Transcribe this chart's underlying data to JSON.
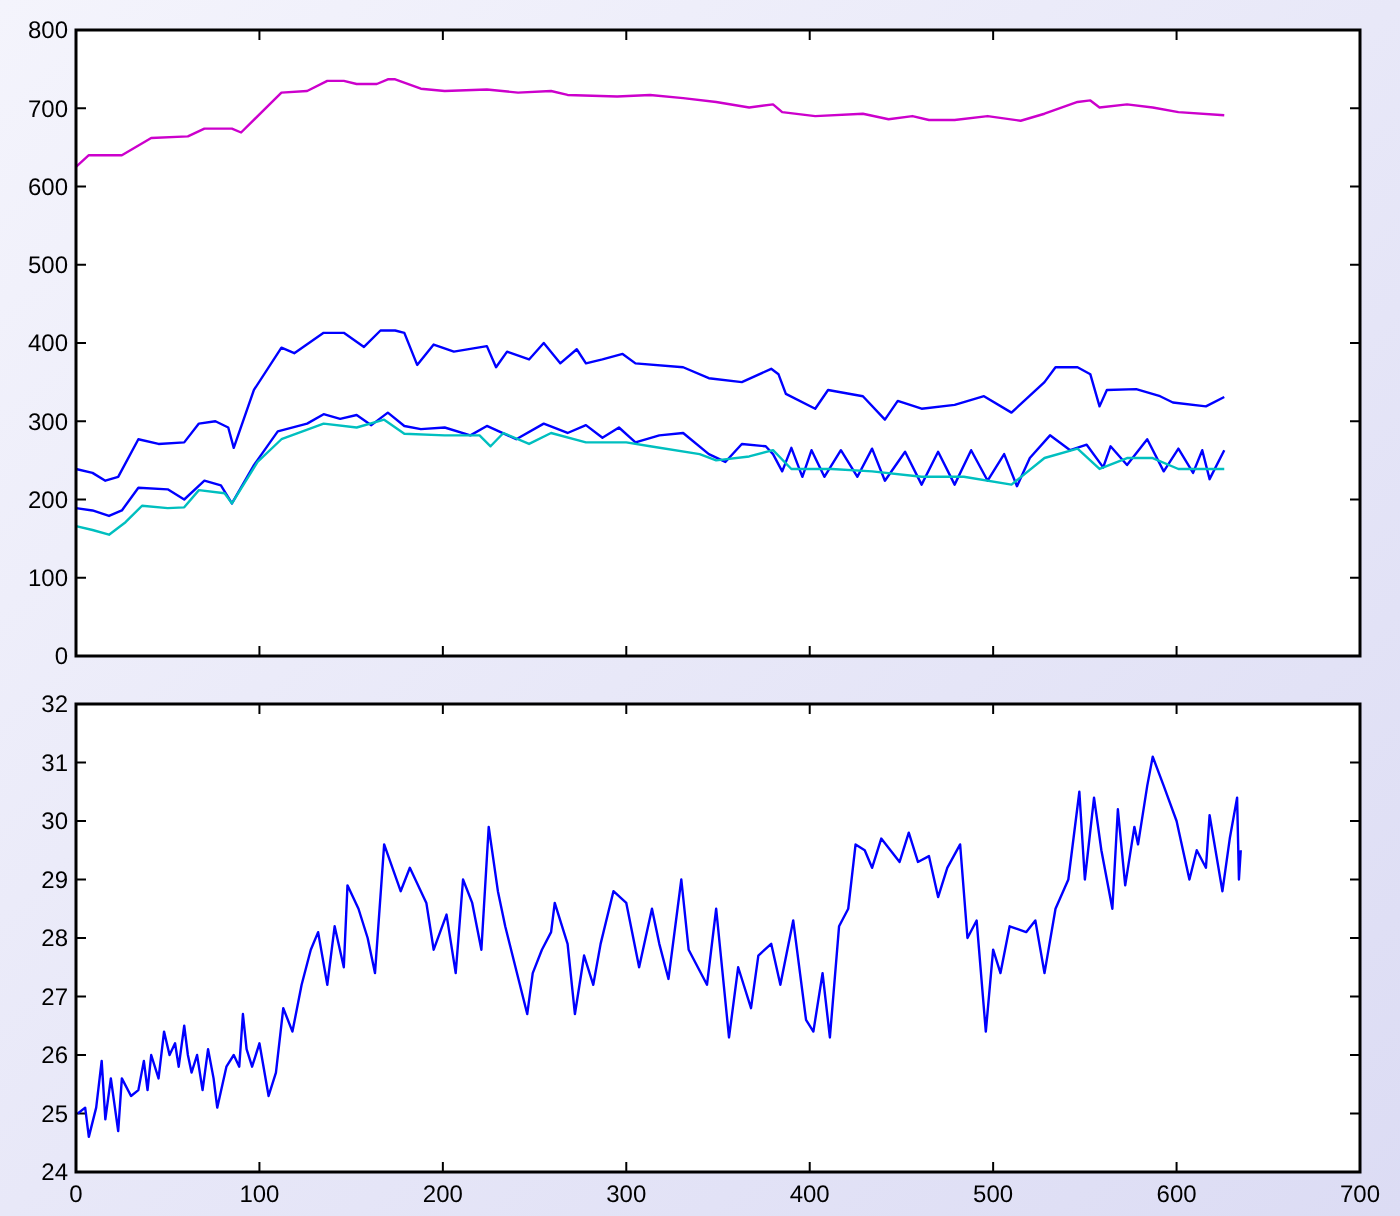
{
  "chart_data": [
    {
      "type": "line",
      "xlim": [
        0,
        700
      ],
      "xticks": [
        0,
        100,
        200,
        300,
        400,
        500,
        600,
        700
      ],
      "ylim": [
        0,
        800
      ],
      "yticks": [
        0,
        100,
        200,
        300,
        400,
        500,
        600,
        700,
        800
      ],
      "tick_labels": "y",
      "grid": false,
      "series": [
        {
          "color": "#cc00cc",
          "x": [
            0,
            7,
            25,
            41,
            61,
            70,
            85,
            90,
            112,
            126,
            137,
            146,
            153,
            164,
            170,
            174,
            188,
            201,
            224,
            241,
            259,
            268,
            295,
            313,
            331,
            349,
            367,
            380,
            385,
            403,
            429,
            443,
            456,
            465,
            479,
            497,
            515,
            528,
            546,
            553,
            558,
            573,
            587,
            601,
            626
          ],
          "values": [
            625,
            640,
            640,
            662,
            664,
            674,
            674,
            669,
            720,
            722,
            735,
            735,
            731,
            731,
            737,
            737,
            725,
            722,
            724,
            720,
            722,
            717,
            715,
            717,
            713,
            708,
            701,
            705,
            695,
            690,
            693,
            686,
            690,
            685,
            685,
            690,
            684,
            693,
            708,
            710,
            701,
            705,
            701,
            695,
            691
          ]
        },
        {
          "color": "#0000ff",
          "x": [
            0,
            9,
            16,
            23,
            34,
            45,
            59,
            67,
            76,
            83,
            86,
            97,
            112,
            119,
            135,
            146,
            157,
            166,
            174,
            179,
            186,
            195,
            206,
            224,
            229,
            235,
            247,
            255,
            264,
            273,
            278,
            287,
            298,
            305,
            331,
            345,
            363,
            379,
            383,
            387,
            403,
            410,
            429,
            441,
            448,
            461,
            479,
            495,
            510,
            528,
            534,
            546,
            553,
            558,
            562,
            578,
            591,
            598,
            616,
            626
          ],
          "values": [
            239,
            234,
            224,
            229,
            277,
            271,
            273,
            297,
            300,
            292,
            266,
            340,
            394,
            387,
            413,
            413,
            395,
            416,
            416,
            413,
            372,
            398,
            389,
            396,
            369,
            389,
            379,
            400,
            374,
            392,
            374,
            379,
            386,
            374,
            369,
            355,
            350,
            367,
            360,
            335,
            316,
            340,
            332,
            302,
            326,
            316,
            321,
            332,
            311,
            350,
            369,
            369,
            360,
            319,
            340,
            341,
            332,
            324,
            319,
            331
          ]
        },
        {
          "color": "#0000ff",
          "x": [
            0,
            9,
            18,
            25,
            34,
            50,
            59,
            70,
            79,
            85,
            97,
            110,
            126,
            135,
            144,
            153,
            161,
            170,
            179,
            188,
            201,
            215,
            224,
            240,
            255,
            268,
            278,
            287,
            296,
            305,
            318,
            331,
            345,
            354,
            363,
            376,
            380,
            385,
            390,
            396,
            401,
            408,
            417,
            426,
            434,
            441,
            452,
            461,
            470,
            479,
            488,
            497,
            506,
            513,
            520,
            531,
            542,
            551,
            560,
            564,
            573,
            584,
            593,
            601,
            609,
            614,
            618,
            626
          ],
          "values": [
            189,
            186,
            179,
            186,
            215,
            213,
            200,
            224,
            218,
            195,
            244,
            287,
            297,
            309,
            303,
            308,
            295,
            311,
            294,
            290,
            292,
            282,
            294,
            277,
            297,
            285,
            295,
            279,
            292,
            273,
            282,
            285,
            258,
            248,
            271,
            268,
            258,
            236,
            266,
            229,
            263,
            229,
            263,
            229,
            265,
            224,
            261,
            219,
            261,
            219,
            263,
            224,
            258,
            217,
            253,
            282,
            263,
            270,
            241,
            268,
            244,
            277,
            236,
            265,
            234,
            263,
            226,
            263
          ]
        },
        {
          "color": "#00bfbf",
          "x": [
            0,
            9,
            18,
            27,
            36,
            50,
            59,
            67,
            81,
            85,
            99,
            112,
            135,
            153,
            168,
            179,
            201,
            220,
            226,
            233,
            247,
            259,
            278,
            300,
            313,
            340,
            349,
            367,
            380,
            390,
            412,
            434,
            461,
            484,
            510,
            528,
            546,
            558,
            573,
            587,
            601,
            626
          ],
          "values": [
            166,
            161,
            155,
            171,
            192,
            189,
            190,
            212,
            208,
            195,
            248,
            277,
            297,
            292,
            302,
            284,
            282,
            282,
            268,
            285,
            271,
            285,
            273,
            273,
            268,
            258,
            250,
            255,
            263,
            239,
            239,
            236,
            229,
            229,
            219,
            253,
            265,
            239,
            253,
            253,
            239,
            239
          ]
        }
      ]
    },
    {
      "type": "line",
      "xlim": [
        0,
        700
      ],
      "xticks": [
        0,
        100,
        200,
        300,
        400,
        500,
        600,
        700
      ],
      "ylim": [
        24,
        32
      ],
      "yticks": [
        24,
        25,
        26,
        27,
        28,
        29,
        30,
        31,
        32
      ],
      "grid": false,
      "series": [
        {
          "color": "#0000ff",
          "x": [
            1,
            5,
            7,
            11,
            14,
            16,
            19,
            23,
            25,
            30,
            34,
            37,
            39,
            41,
            45,
            48,
            51,
            54,
            56,
            59,
            61,
            63,
            66,
            69,
            72,
            75,
            77,
            82,
            86,
            89,
            91,
            93,
            96,
            100,
            105,
            109,
            113,
            118,
            123,
            128,
            132,
            137,
            141,
            146,
            148,
            154,
            159,
            163,
            168,
            177,
            182,
            191,
            195,
            202,
            207,
            211,
            216,
            221,
            225,
            230,
            234,
            246,
            249,
            254,
            259,
            261,
            268,
            272,
            277,
            282,
            286,
            293,
            300,
            307,
            314,
            318,
            323,
            330,
            334,
            344,
            349,
            356,
            361,
            368,
            372,
            379,
            384,
            391,
            398,
            402,
            407,
            411,
            416,
            421,
            425,
            430,
            434,
            439,
            444,
            449,
            454,
            459,
            465,
            470,
            475,
            482,
            486,
            491,
            496,
            500,
            504,
            509,
            518,
            523,
            528,
            534,
            541,
            547,
            550,
            555,
            559,
            565,
            568,
            572,
            577,
            579,
            584,
            587,
            593,
            600,
            607,
            611,
            616,
            618,
            625,
            629,
            633,
            634,
            635
          ],
          "values": [
            25.0,
            25.1,
            24.6,
            25.1,
            25.9,
            24.9,
            25.6,
            24.7,
            25.6,
            25.3,
            25.4,
            25.9,
            25.4,
            26.0,
            25.6,
            26.4,
            26.0,
            26.2,
            25.8,
            26.5,
            26.0,
            25.7,
            26.0,
            25.4,
            26.1,
            25.6,
            25.1,
            25.8,
            26.0,
            25.8,
            26.7,
            26.1,
            25.8,
            26.2,
            25.3,
            25.7,
            26.8,
            26.4,
            27.2,
            27.8,
            28.1,
            27.2,
            28.2,
            27.5,
            28.9,
            28.5,
            28.0,
            27.4,
            29.6,
            28.8,
            29.2,
            28.6,
            27.8,
            28.4,
            27.4,
            29.0,
            28.6,
            27.8,
            29.9,
            28.8,
            28.2,
            26.7,
            27.4,
            27.8,
            28.1,
            28.6,
            27.9,
            26.7,
            27.7,
            27.2,
            27.9,
            28.8,
            28.6,
            27.5,
            28.5,
            27.9,
            27.3,
            29.0,
            27.8,
            27.2,
            28.5,
            26.3,
            27.5,
            26.8,
            27.7,
            27.9,
            27.2,
            28.3,
            26.6,
            26.4,
            27.4,
            26.3,
            28.2,
            28.5,
            29.6,
            29.5,
            29.2,
            29.7,
            29.5,
            29.3,
            29.8,
            29.3,
            29.4,
            28.7,
            29.2,
            29.6,
            28.0,
            28.3,
            26.4,
            27.8,
            27.4,
            28.2,
            28.1,
            28.3,
            27.4,
            28.5,
            29.0,
            30.5,
            29.0,
            30.4,
            29.5,
            28.5,
            30.2,
            28.9,
            29.9,
            29.6,
            30.6,
            31.1,
            30.6,
            30.0,
            29.0,
            29.5,
            29.2,
            30.1,
            28.8,
            29.7,
            30.4,
            29.0,
            29.5
          ]
        }
      ]
    }
  ]
}
